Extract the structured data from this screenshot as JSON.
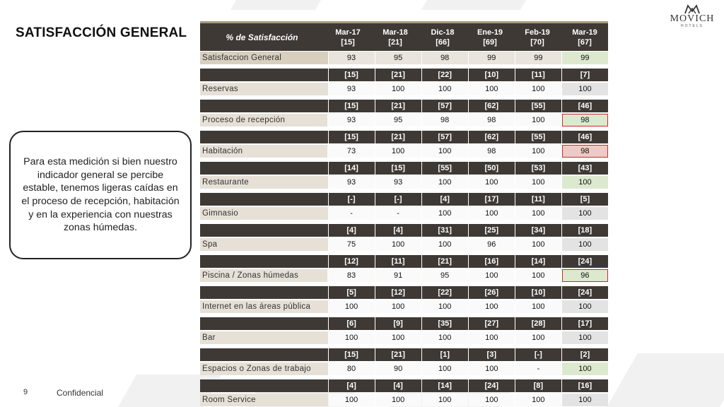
{
  "title": "SATISFACCIÓN GENERAL",
  "logo": {
    "brand": "MOVICH",
    "sub": "HOTELS",
    "icon": "movich-crown-logo"
  },
  "callout": "Para esta medición si bien nuestro indicador general se percibe estable, tenemos ligeras caídas en el proceso de recepción, habitación y en la experiencia con nuestras zonas húmedas.",
  "footer": {
    "page": "9",
    "label": "Confidencial"
  },
  "colors": {
    "dark_header": "#3e3935",
    "label_bg": "#e6e0d6",
    "highlight_green": "#dde9cf",
    "highlight_red": "#f0c8c6",
    "alert_border": "#cc2a2a"
  },
  "table": {
    "header_label": "% de Satisfacción",
    "columns": [
      {
        "period": "Mar-17",
        "n": "[15]"
      },
      {
        "period": "Mar-18",
        "n": "[21]"
      },
      {
        "period": "Dic-18",
        "n": "[66]"
      },
      {
        "period": "Ene-19",
        "n": "[69]"
      },
      {
        "period": "Feb-19",
        "n": "[70]"
      },
      {
        "period": "Mar-19",
        "n": "[67]"
      }
    ],
    "rows": [
      {
        "name": "Satisfaccion General",
        "counts": [],
        "values": [
          "93",
          "95",
          "98",
          "99",
          "99",
          "99"
        ],
        "last": "green"
      },
      {
        "name": "Reservas",
        "counts": [
          "[15]",
          "[21]",
          "[22]",
          "[10]",
          "[11]",
          "[7]"
        ],
        "values": [
          "93",
          "100",
          "100",
          "100",
          "100",
          "100"
        ],
        "last": "gray"
      },
      {
        "name": "Proceso de recepción",
        "counts": [
          "[15]",
          "[21]",
          "[57]",
          "[62]",
          "[55]",
          "[46]"
        ],
        "values": [
          "93",
          "95",
          "98",
          "98",
          "100",
          "98"
        ],
        "last": "green-red"
      },
      {
        "name": "Habitación",
        "counts": [
          "[15]",
          "[21]",
          "[57]",
          "[62]",
          "[55]",
          "[46]"
        ],
        "values": [
          "73",
          "100",
          "100",
          "98",
          "100",
          "98"
        ],
        "last": "pink-red"
      },
      {
        "name": "Restaurante",
        "counts": [
          "[14]",
          "[15]",
          "[55]",
          "[50]",
          "[53]",
          "[43]"
        ],
        "values": [
          "93",
          "93",
          "100",
          "100",
          "100",
          "100"
        ],
        "last": "green"
      },
      {
        "name": "Gimnasio",
        "counts": [
          "[-]",
          "[-]",
          "[4]",
          "[17]",
          "[11]",
          "[5]"
        ],
        "values": [
          "-",
          "-",
          "100",
          "100",
          "100",
          "100"
        ],
        "last": "gray"
      },
      {
        "name": "Spa",
        "counts": [
          "[4]",
          "[4]",
          "[31]",
          "[25]",
          "[34]",
          "[18]"
        ],
        "values": [
          "75",
          "100",
          "100",
          "96",
          "100",
          "100"
        ],
        "last": "gray"
      },
      {
        "name": "Piscina / Zonas húmedas",
        "counts": [
          "[12]",
          "[11]",
          "[21]",
          "[16]",
          "[14]",
          "[24]"
        ],
        "values": [
          "83",
          "91",
          "95",
          "100",
          "100",
          "96"
        ],
        "last": "green-red"
      },
      {
        "name": "Internet en las áreas pública",
        "counts": [
          "[5]",
          "[12]",
          "[22]",
          "[26]",
          "[10]",
          "[24]"
        ],
        "values": [
          "100",
          "100",
          "100",
          "100",
          "100",
          "100"
        ],
        "last": "gray"
      },
      {
        "name": "Bar",
        "counts": [
          "[6]",
          "[9]",
          "[35]",
          "[27]",
          "[28]",
          "[17]"
        ],
        "values": [
          "100",
          "100",
          "100",
          "100",
          "100",
          "100"
        ],
        "last": "gray"
      },
      {
        "name": "Espacios o Zonas de trabajo",
        "counts": [
          "[15]",
          "[21]",
          "[1]",
          "[3]",
          "[-]",
          "[2]"
        ],
        "values": [
          "80",
          "90",
          "100",
          "100",
          "-",
          "100"
        ],
        "last": "green"
      },
      {
        "name": "Room Service",
        "counts": [
          "[4]",
          "[4]",
          "[14]",
          "[24]",
          "[8]",
          "[16]"
        ],
        "values": [
          "100",
          "100",
          "100",
          "100",
          "100",
          "100"
        ],
        "last": "gray"
      }
    ]
  }
}
